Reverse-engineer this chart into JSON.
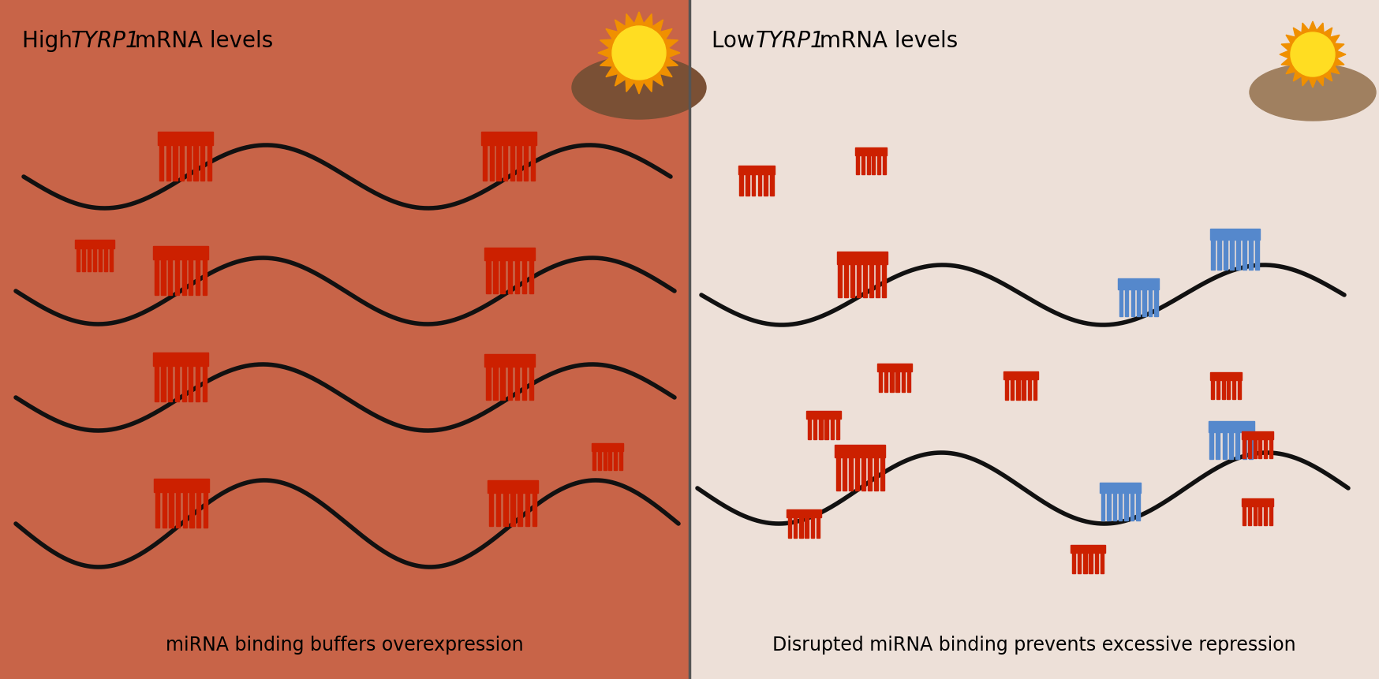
{
  "left_bg": "#c86448",
  "right_bg": "#ede0d8",
  "divider_color": "#666666",
  "title_left_1": "High ",
  "title_left_2": "TYRP1",
  "title_left_3": " mRNA levels",
  "title_right_1": "Low ",
  "title_right_2": "TYRP1",
  "title_right_3": " mRNA levels",
  "caption_left": "miRNA binding buffers overexpression",
  "caption_right": "Disrupted miRNA binding prevents excessive repression",
  "mrna_color": "#111111",
  "mirna_red": "#cc2000",
  "mirna_blue": "#5588cc",
  "sun_outer": "#f09000",
  "sun_inner": "#ffdd22",
  "hill_color_left": "#7a5035",
  "hill_color_right": "#a08060",
  "title_fontsize": 20,
  "caption_fontsize": 17
}
